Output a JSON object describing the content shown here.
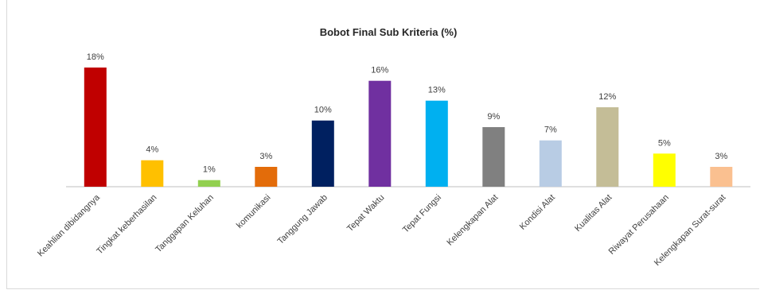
{
  "chart_data": {
    "type": "bar",
    "title": "Bobot Final Sub Kriteria (%)",
    "xlabel": "",
    "ylabel": "",
    "ylim": [
      0,
      20
    ],
    "grid": false,
    "legend": "none",
    "categories": [
      "Keahlian dibidangnya",
      "Tingkat keberhasilan",
      "Tanggapan Keluhan",
      "komunikasi",
      "Tanggung Jawab",
      "Tepat Waktu",
      "Tepat Fungsi",
      "Kelengkapan Alat",
      "Kondisi Alat",
      "Kualitas Alat",
      "Riwayat Perusahaan",
      "Kelengkapan Surat-surat"
    ],
    "values": [
      18,
      4,
      1,
      3,
      10,
      16,
      13,
      9,
      7,
      12,
      5,
      3
    ],
    "data_labels": [
      "18%",
      "4%",
      "1%",
      "3%",
      "10%",
      "16%",
      "13%",
      "9%",
      "7%",
      "12%",
      "5%",
      "3%"
    ],
    "colors": [
      "#c00000",
      "#ffc000",
      "#92d050",
      "#e36c0a",
      "#002060",
      "#7030a0",
      "#00b0f0",
      "#808080",
      "#b8cce4",
      "#c4bd97",
      "#ffff00",
      "#fac090"
    ]
  }
}
